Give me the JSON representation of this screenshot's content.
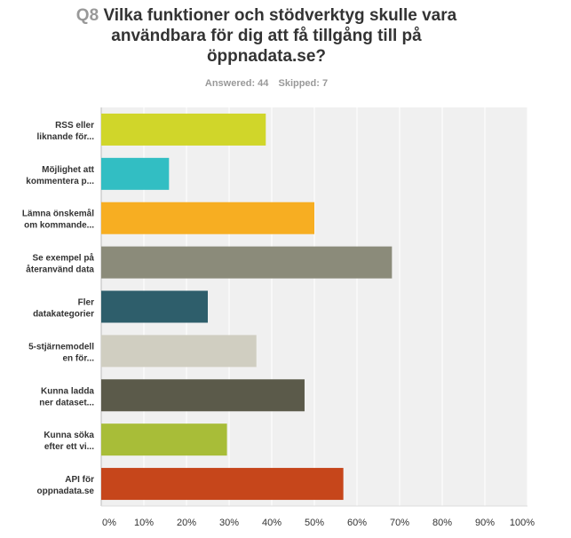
{
  "header": {
    "question_number": "Q8",
    "question_text": "Vilka funktioner och stödverktyg skulle vara användbara för dig att få tillgång till på öppnadata.se?",
    "answered": "Answered: 44",
    "skipped": "Skipped: 7"
  },
  "chart_data": {
    "type": "bar",
    "orientation": "horizontal",
    "categories": [
      [
        "RSS eller",
        "liknande för..."
      ],
      [
        "Möjlighet att",
        "kommentera p..."
      ],
      [
        "Lämna önskemål",
        "om kommande..."
      ],
      [
        "Se exempel på",
        "återanvänd data"
      ],
      [
        "Fler",
        "datakategorier"
      ],
      [
        "5-stjärnemodell",
        "en för..."
      ],
      [
        "Kunna ladda",
        "ner dataset..."
      ],
      [
        "Kunna söka",
        "efter ett vi..."
      ],
      [
        "API för",
        "oppnadata.se"
      ]
    ],
    "values": [
      38.6,
      15.9,
      50.0,
      68.2,
      25.0,
      36.4,
      47.7,
      29.5,
      56.8
    ],
    "colors": [
      "#d0d62a",
      "#32bec3",
      "#f7ae22",
      "#8b8b7a",
      "#2e5e6b",
      "#d0cec1",
      "#5b5a4a",
      "#a8bd38",
      "#c6461b"
    ],
    "xlim": [
      0,
      100
    ],
    "xticks": [
      "0%",
      "10%",
      "20%",
      "30%",
      "40%",
      "50%",
      "60%",
      "70%",
      "80%",
      "90%",
      "100%"
    ],
    "grid": true,
    "background": "#f0f0f0",
    "grid_color": "#ffffff"
  }
}
